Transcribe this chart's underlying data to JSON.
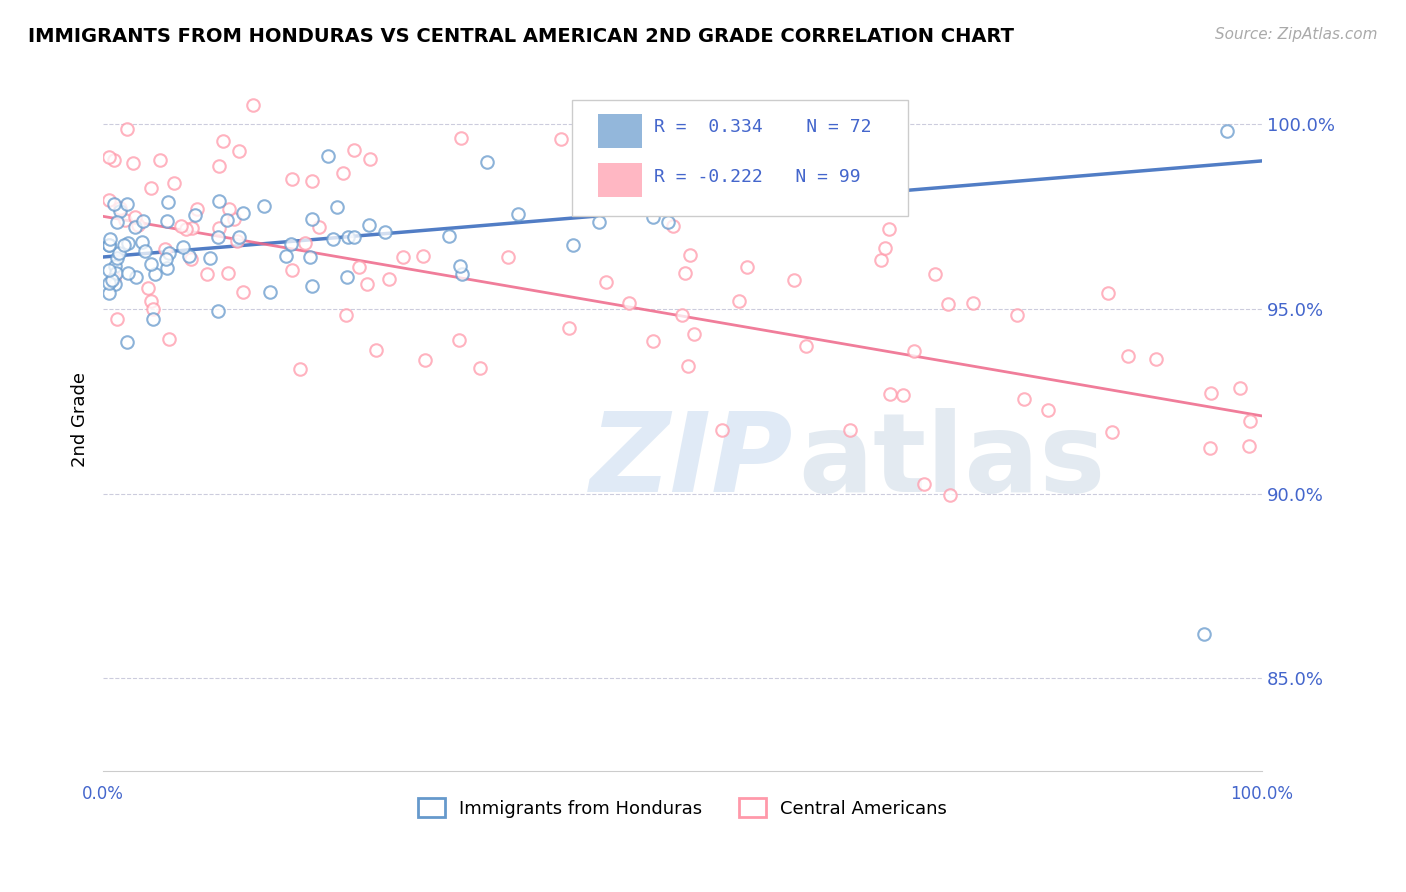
{
  "title": "IMMIGRANTS FROM HONDURAS VS CENTRAL AMERICAN 2ND GRADE CORRELATION CHART",
  "source": "Source: ZipAtlas.com",
  "ylabel": "2nd Grade",
  "yaxis_labels": [
    "85.0%",
    "90.0%",
    "95.0%",
    "100.0%"
  ],
  "yaxis_values": [
    0.85,
    0.9,
    0.95,
    1.0
  ],
  "x_min": 0.0,
  "x_max": 1.0,
  "y_min": 0.825,
  "y_max": 1.015,
  "blue_color": "#6699cc",
  "pink_color": "#ff99aa",
  "trend_blue_color": "#3366bb",
  "trend_pink_color": "#ee6688",
  "legend_label_blue": "Immigrants from Honduras",
  "legend_label_pink": "Central Americans",
  "background_color": "#ffffff",
  "axis_label_color": "#4466cc",
  "grid_color": "#ccccdd",
  "blue_trend_start_y": 0.964,
  "blue_trend_end_y": 0.99,
  "pink_trend_start_y": 0.975,
  "pink_trend_end_y": 0.921
}
